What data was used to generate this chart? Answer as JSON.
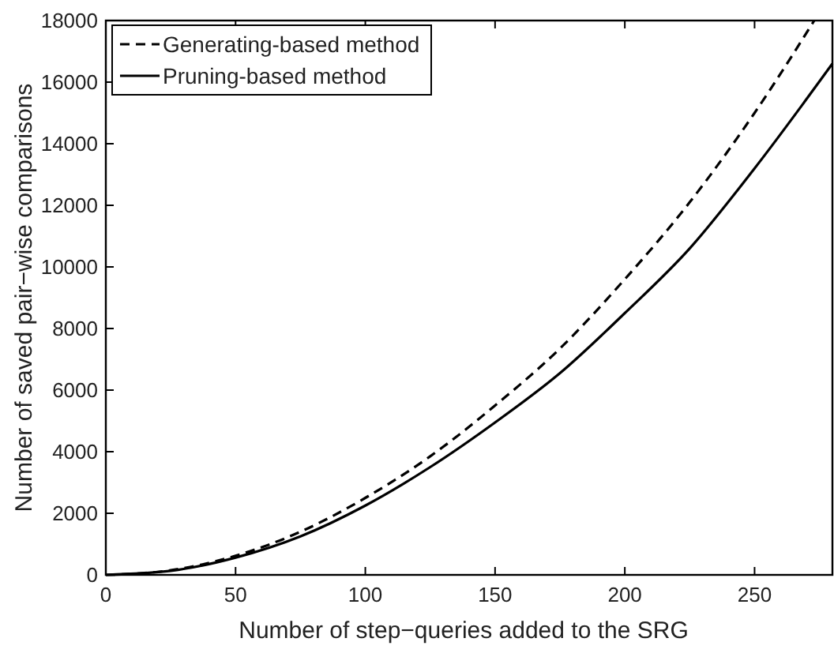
{
  "chart_data": {
    "type": "line",
    "xlabel": "Number of step−queries added to the SRG",
    "ylabel": "Number of saved pair−wise comparisons",
    "xlim": [
      0,
      280
    ],
    "ylim": [
      0,
      18000
    ],
    "xticks": [
      0,
      50,
      100,
      150,
      200,
      250
    ],
    "yticks": [
      0,
      2000,
      4000,
      6000,
      8000,
      10000,
      12000,
      14000,
      16000,
      18000
    ],
    "grid": false,
    "legend": "top left",
    "marker": "none",
    "series": [
      {
        "name": "Generating-based method",
        "color": "#000000",
        "line_style": "dashed",
        "x": [
          0,
          25,
          50,
          75,
          100,
          125,
          150,
          175,
          200,
          225,
          250,
          273
        ],
        "values": [
          0,
          150,
          620,
          1400,
          2500,
          3850,
          5500,
          7350,
          9600,
          12100,
          15000,
          18000
        ]
      },
      {
        "name": "Pruning-based method",
        "color": "#000000",
        "line_style": "solid",
        "x": [
          0,
          25,
          50,
          75,
          100,
          125,
          150,
          175,
          200,
          225,
          250,
          280
        ],
        "values": [
          0,
          130,
          560,
          1250,
          2250,
          3500,
          4950,
          6550,
          8500,
          10600,
          13200,
          16600
        ]
      }
    ]
  }
}
